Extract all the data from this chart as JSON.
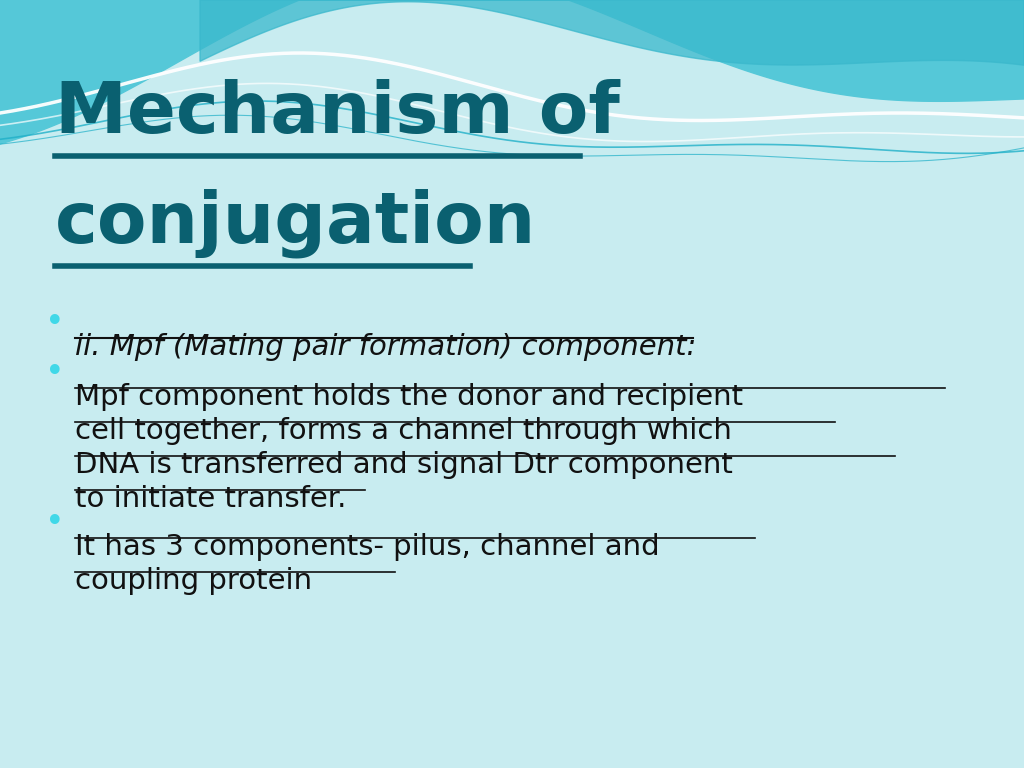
{
  "bg_color": "#c8ecf0",
  "title_line1": "Mechanism of",
  "title_line2": "conjugation",
  "title_color": "#0a6070",
  "title_fontsize": 52,
  "bullet_color": "#40d8e8",
  "text_color": "#111111",
  "bullet_fontsize": 21,
  "bullets": [
    {
      "text": "ii. Mpf (Mating pair formation) component:",
      "italic": true,
      "underline": true
    },
    {
      "lines": [
        "Mpf component holds the donor and recipient",
        "cell together, forms a channel through which",
        "DNA is transferred and signal Dtr component",
        "to initiate transfer."
      ],
      "italic": false,
      "underline": true
    },
    {
      "lines": [
        "It has 3 components- pilus, channel and",
        "coupling protein"
      ],
      "italic": false,
      "underline": true
    }
  ]
}
